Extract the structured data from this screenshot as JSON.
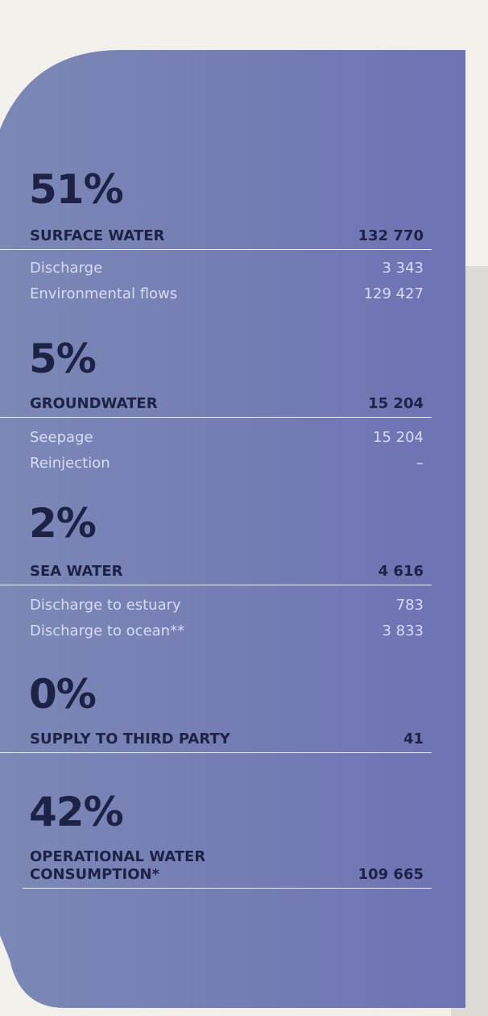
{
  "sections": [
    {
      "percent": "51%",
      "title": [
        "SURFACE WATER"
      ],
      "total": "132 770",
      "items": [
        {
          "label": "Discharge",
          "value": "3 343"
        },
        {
          "label": "Environmental flows",
          "value": "129 427"
        }
      ]
    },
    {
      "percent": "5%",
      "title": [
        "GROUNDWATER"
      ],
      "total": "15 204",
      "items": [
        {
          "label": "Seepage",
          "value": "15 204"
        },
        {
          "label": "Reinjection",
          "value": "–"
        }
      ]
    },
    {
      "percent": "2%",
      "title": [
        "SEA WATER"
      ],
      "total": "4 616",
      "items": [
        {
          "label": "Discharge to estuary",
          "value": "783"
        },
        {
          "label": "Discharge to ocean**",
          "value": "3 833"
        }
      ]
    },
    {
      "percent": "0%",
      "title": [
        "SUPPLY TO THIRD PARTY"
      ],
      "total": "41",
      "items": []
    },
    {
      "percent": "42%",
      "title": [
        "OPERATIONAL WATER",
        "CONSUMPTION*"
      ],
      "total": "109 665",
      "items": []
    }
  ]
}
